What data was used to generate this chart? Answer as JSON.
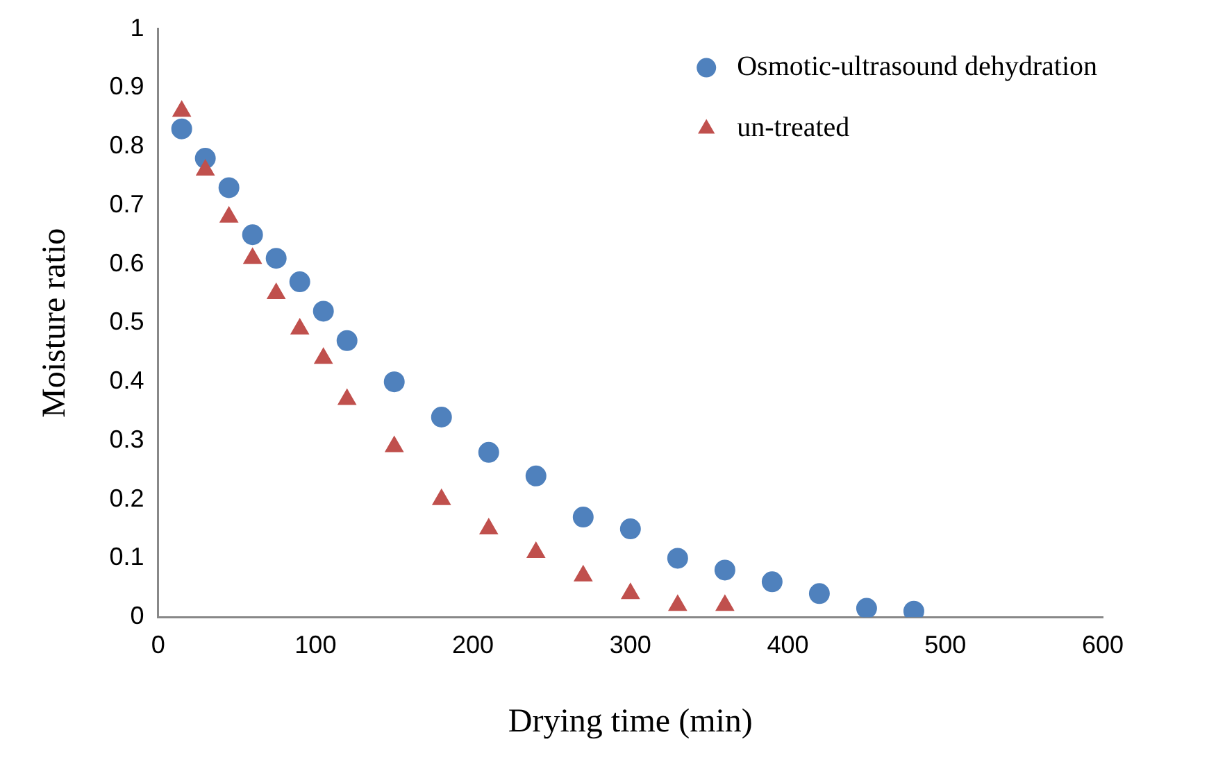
{
  "chart_data": {
    "type": "scatter",
    "xlabel": "Drying time (min)",
    "ylabel": "Moisture ratio",
    "xlim": [
      0,
      600
    ],
    "xticks": [
      0,
      100,
      200,
      300,
      400,
      500,
      600
    ],
    "ylim": [
      0,
      1
    ],
    "yticks": [
      0,
      {
        "value": 0.1,
        "label": "0.1"
      },
      {
        "value": 0.2,
        "label": "0.2"
      },
      {
        "value": 0.3,
        "label": "0.3"
      },
      {
        "value": 0.4,
        "label": "0.4"
      },
      {
        "value": 0.5,
        "label": "0.5"
      },
      {
        "value": 0.6,
        "label": "0.6"
      },
      {
        "value": 0.7,
        "label": "0.7"
      },
      {
        "value": 0.8,
        "label": "0.8"
      },
      {
        "value": 0.9,
        "label": "0.9"
      },
      1
    ],
    "grid": false,
    "legend": "top right",
    "series": [
      {
        "name": "Osmotic-ultrasound dehydration",
        "color": "#4f81bd",
        "marker": "circle",
        "x": [
          15,
          30,
          45,
          60,
          75,
          90,
          105,
          120,
          150,
          180,
          210,
          240,
          270,
          300,
          330,
          360,
          390,
          420,
          450,
          480
        ],
        "values": [
          0.83,
          0.78,
          0.73,
          0.65,
          0.61,
          0.57,
          0.52,
          0.47,
          0.4,
          0.34,
          0.28,
          0.24,
          0.17,
          0.15,
          0.1,
          0.08,
          0.06,
          0.04,
          0.015,
          0.01
        ]
      },
      {
        "name": "un-treated",
        "color": "#c0504d",
        "marker": "triangle",
        "x": [
          15,
          30,
          45,
          60,
          75,
          90,
          105,
          120,
          150,
          180,
          210,
          240,
          270,
          300,
          330,
          360
        ],
        "values": [
          0.86,
          0.76,
          0.68,
          0.61,
          0.55,
          0.49,
          0.44,
          0.37,
          0.29,
          0.2,
          0.15,
          0.11,
          0.07,
          0.04,
          0.02,
          0.02
        ]
      }
    ]
  }
}
